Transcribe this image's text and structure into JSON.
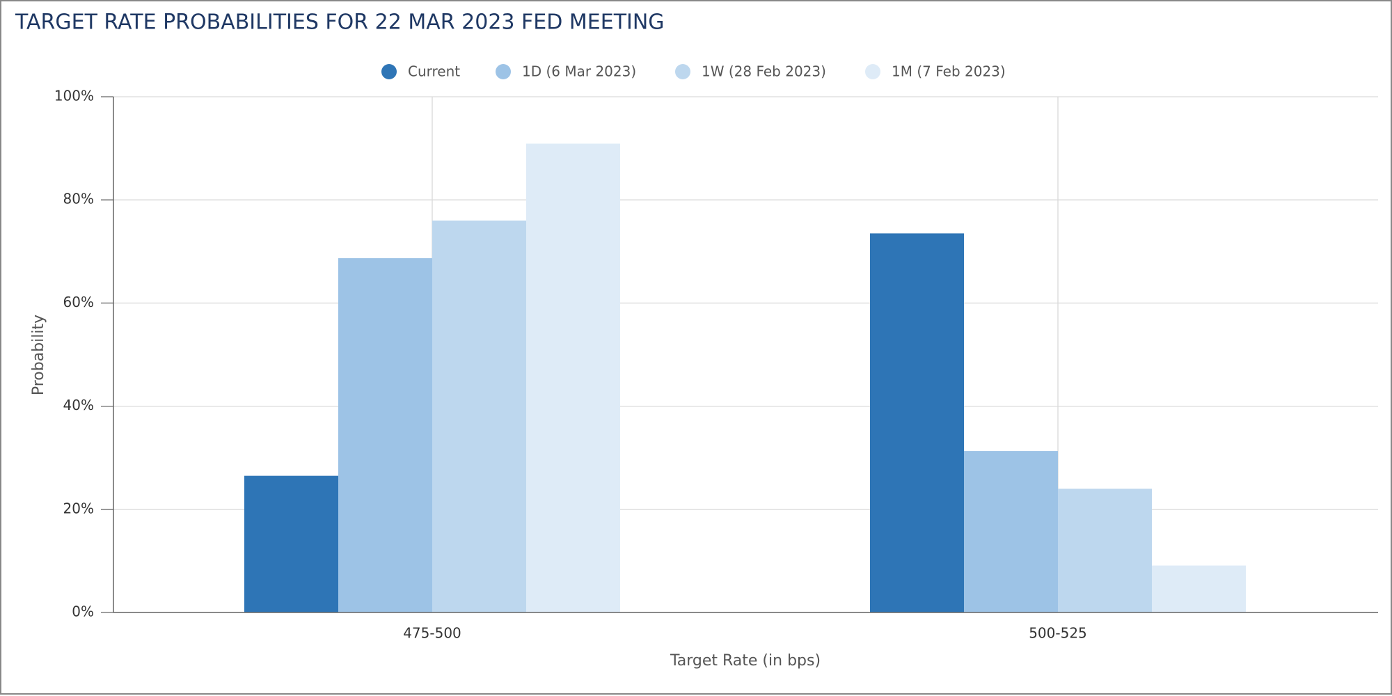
{
  "chart_data": {
    "type": "bar",
    "title": "TARGET RATE PROBABILITIES FOR 22 MAR 2023 FED MEETING",
    "x_label": "Target Rate (in bps)",
    "y_label": "Probability",
    "categories": [
      "475-500",
      "500-525"
    ],
    "series": [
      {
        "name": "Current",
        "color": "#2e75b6",
        "values": [
          26.5,
          73.5
        ]
      },
      {
        "name": "1D (6 Mar 2023)",
        "color": "#9dc3e6",
        "values": [
          68.7,
          31.3
        ]
      },
      {
        "name": "1W (28 Feb 2023)",
        "color": "#bdd7ee",
        "values": [
          76.0,
          24.0
        ]
      },
      {
        "name": "1M (7 Feb 2023)",
        "color": "#deebf7",
        "values": [
          90.9,
          9.1
        ]
      }
    ],
    "ylim": [
      0,
      100
    ],
    "yticks": [
      {
        "value": 0,
        "label": "0%"
      },
      {
        "value": 20,
        "label": "20%"
      },
      {
        "value": 40,
        "label": "40%"
      },
      {
        "value": 60,
        "label": "60%"
      },
      {
        "value": 80,
        "label": "80%"
      },
      {
        "value": 100,
        "label": "100%"
      }
    ],
    "grid": true
  }
}
